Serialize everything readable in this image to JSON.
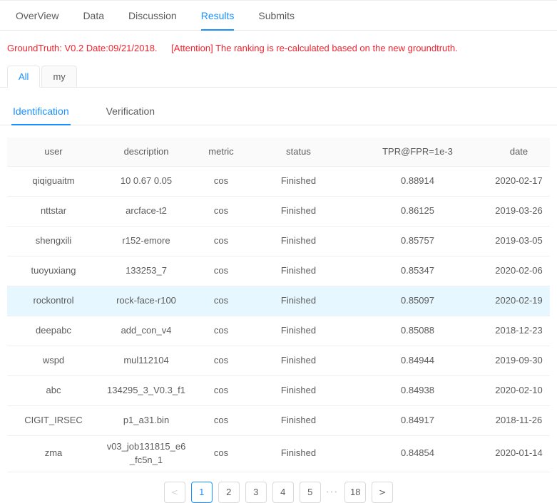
{
  "colors": {
    "accent": "#1890ff",
    "alert_text": "#f5222d",
    "selected_row_bg": "#e6f7ff",
    "table_header_bg": "#fafafa",
    "border": "#e8e8e8"
  },
  "nav_tabs": {
    "items": [
      {
        "label": "OverView",
        "active": false
      },
      {
        "label": "Data",
        "active": false
      },
      {
        "label": "Discussion",
        "active": false
      },
      {
        "label": "Results",
        "active": true
      },
      {
        "label": "Submits",
        "active": false
      }
    ]
  },
  "alert": {
    "groundtruth": "GroundTruth: V0.2 Date:09/21/2018.",
    "attention": "[Attention] The ranking is re-calculated based on the new groundtruth."
  },
  "scope_tabs": {
    "items": [
      {
        "label": "All",
        "active": true
      },
      {
        "label": "my",
        "active": false
      }
    ]
  },
  "task_tabs": {
    "items": [
      {
        "label": "Identification",
        "active": true
      },
      {
        "label": "Verification",
        "active": false
      }
    ]
  },
  "table": {
    "columns": [
      "user",
      "description",
      "metric",
      "status",
      "TPR@FPR=1e-3",
      "date"
    ],
    "rows": [
      {
        "user": "qiqiguaitm",
        "description": "10 0.67 0.05",
        "metric": "cos",
        "status": "Finished",
        "tpr": "0.88914",
        "date": "2020-02-17",
        "selected": false
      },
      {
        "user": "nttstar",
        "description": "arcface-t2",
        "metric": "cos",
        "status": "Finished",
        "tpr": "0.86125",
        "date": "2019-03-26",
        "selected": false
      },
      {
        "user": "shengxili",
        "description": "r152-emore",
        "metric": "cos",
        "status": "Finished",
        "tpr": "0.85757",
        "date": "2019-03-05",
        "selected": false
      },
      {
        "user": "tuoyuxiang",
        "description": "133253_7",
        "metric": "cos",
        "status": "Finished",
        "tpr": "0.85347",
        "date": "2020-02-06",
        "selected": false
      },
      {
        "user": "rockontrol",
        "description": "rock-face-r100",
        "metric": "cos",
        "status": "Finished",
        "tpr": "0.85097",
        "date": "2020-02-19",
        "selected": true
      },
      {
        "user": "deepabc",
        "description": "add_con_v4",
        "metric": "cos",
        "status": "Finished",
        "tpr": "0.85088",
        "date": "2018-12-23",
        "selected": false
      },
      {
        "user": "wspd",
        "description": "mul112104",
        "metric": "cos",
        "status": "Finished",
        "tpr": "0.84944",
        "date": "2019-09-30",
        "selected": false
      },
      {
        "user": "abc",
        "description": "134295_3_V0.3_f1",
        "metric": "cos",
        "status": "Finished",
        "tpr": "0.84938",
        "date": "2020-02-10",
        "selected": false
      },
      {
        "user": "CIGIT_IRSEC",
        "description": "p1_a31.bin",
        "metric": "cos",
        "status": "Finished",
        "tpr": "0.84917",
        "date": "2018-11-26",
        "selected": false
      },
      {
        "user": "zma",
        "description": "v03_job131815_e6_fc5n_1",
        "metric": "cos",
        "status": "Finished",
        "tpr": "0.84854",
        "date": "2020-01-14",
        "selected": false
      }
    ]
  },
  "pagination": {
    "current_page": "1",
    "total_pages": "18",
    "prev_label": "<",
    "next_label": ">",
    "ellipsis": "•••",
    "pages": [
      {
        "label": "1",
        "active": true
      },
      {
        "label": "2",
        "active": false
      },
      {
        "label": "3",
        "active": false
      },
      {
        "label": "4",
        "active": false
      },
      {
        "label": "5",
        "active": false
      },
      {
        "label": "18",
        "active": false
      }
    ]
  }
}
